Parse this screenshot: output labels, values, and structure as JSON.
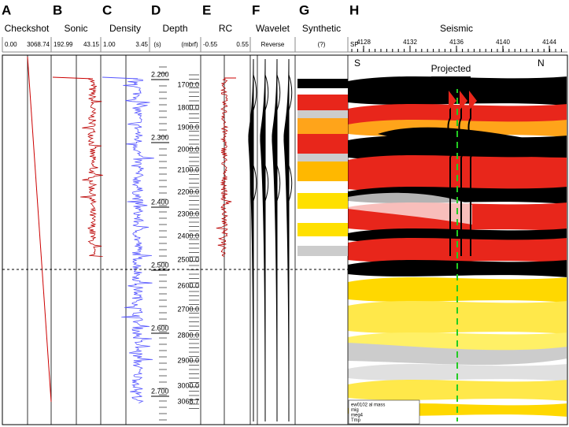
{
  "panels": [
    {
      "letter": "A",
      "title": "Checkshot",
      "scale": [
        "0.00",
        "3068.74"
      ]
    },
    {
      "letter": "B",
      "title": "Sonic",
      "scale": [
        "192.99",
        "43.15"
      ]
    },
    {
      "letter": "C",
      "title": "Density",
      "scale": [
        "1.00",
        "3.45"
      ]
    },
    {
      "letter": "D",
      "title": "Depth",
      "scale": [
        "(s)",
        "(mbrf)"
      ]
    },
    {
      "letter": "E",
      "title": "RC",
      "scale": [
        "-0.55",
        "0.55"
      ]
    },
    {
      "letter": "F",
      "title": "Wavelet",
      "scale": [
        "Reverse"
      ]
    },
    {
      "letter": "G",
      "title": "Synthetic",
      "scale": [
        "(?)"
      ]
    },
    {
      "letter": "H",
      "title": "Seismic",
      "scale": [
        "SP"
      ]
    }
  ],
  "depth": {
    "time_ticks": [
      "2.200",
      "2.300",
      "2.400",
      "2.500",
      "2.600",
      "2.700"
    ],
    "depth_ticks": [
      "1700.0",
      "1800.0",
      "1900.0",
      "2000.0",
      "2100.0",
      "2200.0",
      "2300.0",
      "2400.0",
      "2500.0",
      "2600.0",
      "2700.0",
      "2800.0",
      "2900.0",
      "3000.0",
      "3068.7"
    ]
  },
  "seismic": {
    "sp_ticks": [
      "4128",
      "4132",
      "4136",
      "4140",
      "4144"
    ],
    "left": "S",
    "right": "N",
    "projected": "Projected",
    "legend": [
      "ew0102 al mass",
      "mig",
      "meg4",
      "Tmp"
    ]
  }
}
